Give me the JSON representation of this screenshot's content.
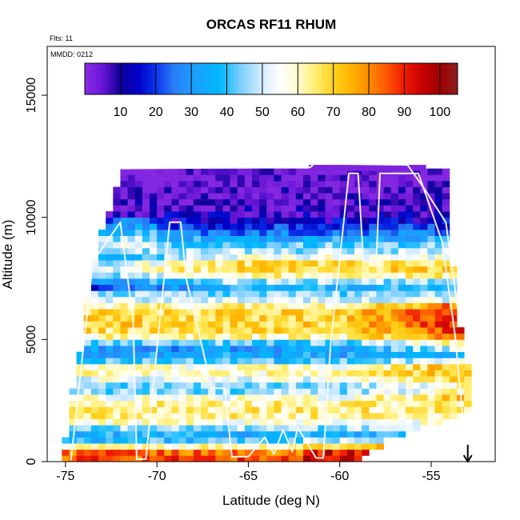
{
  "chart_data": {
    "type": "heatmap",
    "title": "ORCAS RF11 RHUM",
    "note_flights": "Flts: 11",
    "note_mmdd": "MMDD: 0212",
    "xlabel": "Latitude (deg N)",
    "ylabel": "Altitude (m)",
    "xlim": [
      -76.0,
      -51.5
    ],
    "ylim": [
      0,
      17000
    ],
    "x_ticks": [
      -75,
      -70,
      -65,
      -60,
      -55
    ],
    "x_tick_labels": [
      "-75",
      "-70",
      "-65",
      "-60",
      "-55"
    ],
    "y_ticks": [
      0,
      5000,
      10000,
      15000
    ],
    "y_tick_labels": [
      "0",
      "5000",
      "10000",
      "15000"
    ],
    "colorbar": {
      "min": 0,
      "max": 105,
      "ticks": [
        10,
        20,
        30,
        40,
        50,
        60,
        70,
        80,
        90,
        100
      ],
      "tick_labels": [
        "10",
        "20",
        "30",
        "40",
        "50",
        "60",
        "70",
        "80",
        "90",
        "100"
      ],
      "color_stops": [
        {
          "v": 0,
          "color": "#8a2be2"
        },
        {
          "v": 5,
          "color": "#6a16d8"
        },
        {
          "v": 10,
          "color": "#10009a"
        },
        {
          "v": 15,
          "color": "#0000c8"
        },
        {
          "v": 20,
          "color": "#0a34ee"
        },
        {
          "v": 25,
          "color": "#2a7cf6"
        },
        {
          "v": 30,
          "color": "#1e9cff"
        },
        {
          "v": 38,
          "color": "#00b8ff"
        },
        {
          "v": 44,
          "color": "#7fd0ff"
        },
        {
          "v": 50,
          "color": "#d6edff"
        },
        {
          "v": 55,
          "color": "#ffffff"
        },
        {
          "v": 60,
          "color": "#fffbd0"
        },
        {
          "v": 65,
          "color": "#ffee70"
        },
        {
          "v": 70,
          "color": "#ffd21e"
        },
        {
          "v": 75,
          "color": "#ffb400"
        },
        {
          "v": 80,
          "color": "#ff8c00"
        },
        {
          "v": 85,
          "color": "#ff5500"
        },
        {
          "v": 90,
          "color": "#ee1a00"
        },
        {
          "v": 95,
          "color": "#c80000"
        },
        {
          "v": 100,
          "color": "#a00000"
        },
        {
          "v": 105,
          "color": "#8b2020"
        }
      ]
    },
    "grid": {
      "lat_start": -75.2,
      "lat_step": 0.4,
      "n_cols": 56,
      "alt_step": 250,
      "n_rows": 48
    },
    "coverage": [
      {
        "alt": 0,
        "lat_min": -75.3,
        "lat_max": -59.0
      },
      {
        "alt": 1000,
        "lat_min": -75.0,
        "lat_max": -57.0
      },
      {
        "alt": 2000,
        "lat_min": -74.8,
        "lat_max": -53.0
      },
      {
        "alt": 3000,
        "lat_min": -74.6,
        "lat_max": -53.0
      },
      {
        "alt": 4000,
        "lat_min": -74.3,
        "lat_max": -53.0
      },
      {
        "alt": 5000,
        "lat_min": -74.1,
        "lat_max": -53.2
      },
      {
        "alt": 6000,
        "lat_min": -74.0,
        "lat_max": -53.6
      },
      {
        "alt": 7000,
        "lat_min": -73.7,
        "lat_max": -53.6
      },
      {
        "alt": 8000,
        "lat_min": -73.5,
        "lat_max": -53.8
      },
      {
        "alt": 9000,
        "lat_min": -73.2,
        "lat_max": -53.9
      },
      {
        "alt": 10000,
        "lat_min": -72.7,
        "lat_max": -54.0
      },
      {
        "alt": 11000,
        "lat_min": -72.4,
        "lat_max": -54.2
      },
      {
        "alt": 11900,
        "lat_min": -71.9,
        "lat_max": -54.2
      }
    ],
    "top_strip": {
      "alt_min": 11900,
      "alt_max": 12150,
      "lat_min": -61.7,
      "lat_max": -55.7
    },
    "rh_layers": [
      {
        "alt": 0,
        "rh": 82
      },
      {
        "alt": 250,
        "rh": 90
      },
      {
        "alt": 500,
        "rh": 75
      },
      {
        "alt": 800,
        "rh": 40
      },
      {
        "alt": 1200,
        "rh": 35
      },
      {
        "alt": 1500,
        "rh": 55
      },
      {
        "alt": 2000,
        "rh": 65
      },
      {
        "alt": 2500,
        "rh": 62
      },
      {
        "alt": 3000,
        "rh": 40
      },
      {
        "alt": 3400,
        "rh": 55
      },
      {
        "alt": 3800,
        "rh": 63
      },
      {
        "alt": 4200,
        "rh": 36
      },
      {
        "alt": 4700,
        "rh": 30
      },
      {
        "alt": 5200,
        "rh": 66
      },
      {
        "alt": 5700,
        "rh": 70
      },
      {
        "alt": 6200,
        "rh": 68
      },
      {
        "alt": 6800,
        "rh": 46
      },
      {
        "alt": 7200,
        "rh": 36
      },
      {
        "alt": 7600,
        "rh": 62
      },
      {
        "alt": 8000,
        "rh": 72
      },
      {
        "alt": 8500,
        "rh": 50
      },
      {
        "alt": 9000,
        "rh": 40
      },
      {
        "alt": 9400,
        "rh": 25
      },
      {
        "alt": 9800,
        "rh": 14
      },
      {
        "alt": 10300,
        "rh": 7
      },
      {
        "alt": 11000,
        "rh": 4
      },
      {
        "alt": 12200,
        "rh": 2
      }
    ],
    "series": [
      {
        "name": "flight track",
        "lat": [
          -74.7,
          -73.5,
          -72.0,
          -71.3,
          -71.1,
          -70.6,
          -69.3,
          -68.7,
          -68.4,
          -67.0,
          -66.3,
          -65.9,
          -65.0,
          -64.1,
          -63.6,
          -63.1,
          -62.6,
          -62.3,
          -61.3,
          -60.9,
          -60.5,
          -59.5,
          -59.0,
          -58.7,
          -58.0,
          -57.8,
          -57.3,
          -56.8,
          -55.7,
          -54.4,
          -53.7,
          -53.3
        ],
        "alt": [
          50,
          8200,
          9800,
          5800,
          100,
          100,
          9800,
          9800,
          7500,
          3000,
          3000,
          200,
          200,
          1000,
          300,
          1300,
          400,
          1400,
          150,
          150,
          4800,
          11800,
          11800,
          8200,
          8200,
          11800,
          11800,
          11800,
          11800,
          9000,
          5200,
          2000
        ]
      },
      {
        "name": "flight track (return)",
        "lat": [
          -72.0,
          -66.0,
          -61.6,
          -61.4,
          -56.3,
          -55.4,
          -54.2,
          -53.5
        ],
        "alt": [
          12000,
          12030,
          12050,
          12200,
          12150,
          11200,
          9800,
          6000
        ]
      }
    ],
    "arrow_marker": {
      "lat": -53.0,
      "label": "down arrow"
    }
  }
}
